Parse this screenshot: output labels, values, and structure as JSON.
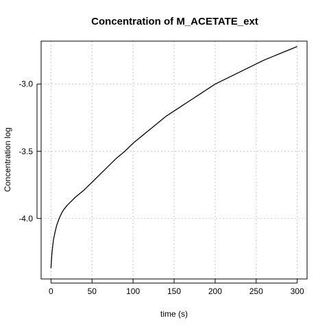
{
  "chart_data": {
    "type": "line",
    "title": "Concentration of M_ACETATE_ext",
    "xlabel": "time (s)",
    "ylabel": "Concentration log",
    "xlim": [
      -12,
      312
    ],
    "ylim": [
      -4.45,
      -2.68
    ],
    "grid": true,
    "x_ticks": [
      0,
      50,
      100,
      150,
      200,
      250,
      300
    ],
    "y_ticks": [
      -4.0,
      -3.5,
      -3.0
    ],
    "x_tick_labels": [
      "0",
      "50",
      "100",
      "150",
      "200",
      "250",
      "300"
    ],
    "y_tick_labels": [
      "-4.0",
      "-3.5",
      "-3.0"
    ],
    "series": [
      {
        "color": "#000000",
        "x": [
          0,
          1,
          2,
          3,
          5,
          7,
          10,
          13,
          16,
          20,
          25,
          30,
          40,
          50,
          60,
          70,
          80,
          90,
          100,
          110,
          120,
          130,
          140,
          150,
          160,
          170,
          180,
          190,
          200,
          210,
          220,
          230,
          240,
          250,
          260,
          270,
          280,
          290,
          300
        ],
        "y": [
          -4.37,
          -4.27,
          -4.21,
          -4.16,
          -4.1,
          -4.05,
          -4.0,
          -3.96,
          -3.93,
          -3.9,
          -3.87,
          -3.84,
          -3.79,
          -3.73,
          -3.67,
          -3.61,
          -3.55,
          -3.5,
          -3.44,
          -3.39,
          -3.34,
          -3.29,
          -3.24,
          -3.2,
          -3.16,
          -3.12,
          -3.08,
          -3.04,
          -3.0,
          -2.97,
          -2.94,
          -2.91,
          -2.88,
          -2.85,
          -2.82,
          -2.795,
          -2.77,
          -2.745,
          -2.72
        ]
      }
    ]
  }
}
